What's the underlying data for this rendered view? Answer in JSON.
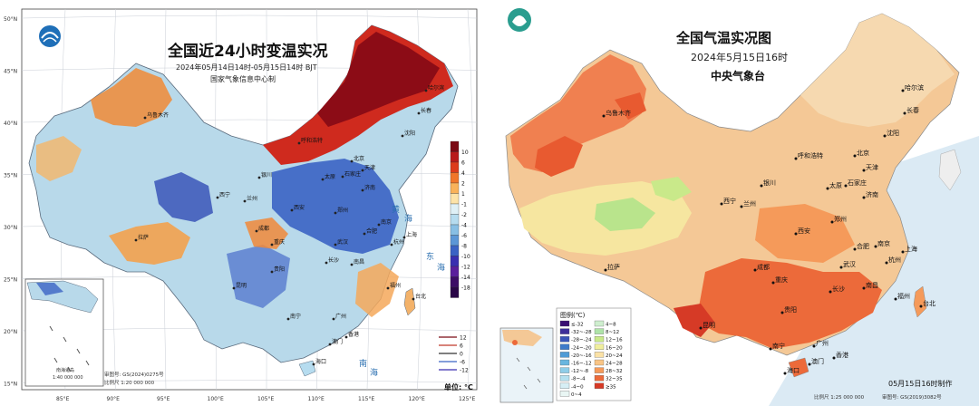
{
  "left_map": {
    "title": "全国近24小时变温实况",
    "subtitle": "2024年05月14日14时-05月15日14时 BJT",
    "agency": "国家气象信息中心制",
    "unit": "单位: °C",
    "lat_labels": [
      "50°N",
      "45°N",
      "40°N",
      "35°N",
      "30°N",
      "25°N",
      "20°N",
      "15°N"
    ],
    "lon_labels": [
      "85°E",
      "90°E",
      "95°E",
      "100°E",
      "105°E",
      "110°E",
      "115°E",
      "120°E",
      "125°E"
    ],
    "legend": {
      "values": [
        "10",
        "6",
        "4",
        "2",
        "1",
        "-1",
        "-2",
        "-4",
        "-6",
        "-8",
        "-10",
        "-12",
        "-14",
        "-18"
      ],
      "colors": [
        "#7a0a14",
        "#b81a1a",
        "#dc3b1c",
        "#f0762a",
        "#f9b25a",
        "#fde3a8",
        "#dff0f6",
        "#b6dcef",
        "#88bfe4",
        "#5c97d6",
        "#3b63c4",
        "#3a2fb0",
        "#5b1f9c",
        "#3d0d66",
        "#2a0647"
      ]
    },
    "contour_legend": [
      "12",
      "6",
      "0",
      "-6",
      "-12"
    ],
    "inset": {
      "label": "南海诸岛",
      "scale": "1:40 000 000"
    },
    "footer": [
      "审图号: GS(2024)0275号",
      "比例尺 1:20 000 000"
    ],
    "cities": [
      "北京",
      "天津",
      "石家庄",
      "济南",
      "郑州",
      "西安",
      "成都",
      "重庆",
      "贵阳",
      "昆明",
      "南宁",
      "广州",
      "香港",
      "澳门",
      "海口",
      "武汉",
      "长沙",
      "南昌",
      "福州",
      "杭州",
      "上海",
      "南京",
      "合肥",
      "台北",
      "沈阳",
      "长春",
      "哈尔滨",
      "呼和浩特",
      "太原",
      "银川",
      "兰州",
      "西宁",
      "乌鲁木齐",
      "拉萨"
    ],
    "sea_labels": [
      "黄",
      "海",
      "东",
      "海",
      "南",
      "海"
    ]
  },
  "right_map": {
    "title": "全国气温实况图",
    "subtitle": "2024年5月15日16时",
    "agency": "中央气象台",
    "legend_title": "图例(℃)",
    "legend_left": [
      "≤-32",
      "-32~-28",
      "-28~-24",
      "-24~-20",
      "-20~-16",
      "-16~-12",
      "-12~-8",
      "-8~-4",
      "-4~0",
      "0~4"
    ],
    "legend_right": [
      "4~8",
      "8~12",
      "12~16",
      "16~20",
      "20~24",
      "24~28",
      "28~32",
      "32~35",
      "≥35"
    ],
    "legend_left_colors": [
      "#3a0f72",
      "#3e2f9a",
      "#3a55b8",
      "#3e7ac9",
      "#4f9bd6",
      "#6ab6df",
      "#8fcde8",
      "#b4e0ef",
      "#d6eef5",
      "#e9f6f4"
    ],
    "legend_right_colors": [
      "#cfeecf",
      "#aee3a8",
      "#c9e98a",
      "#f0ee9c",
      "#fbe2a6",
      "#f9c586",
      "#f59a5a",
      "#ec6a3a",
      "#d63a26"
    ],
    "made_time": "05月15日16时制作",
    "footer": [
      "比例尺 1:25 000 000",
      "审图号: GS(2019)3082号"
    ],
    "cities": [
      "哈尔滨",
      "长春",
      "沈阳",
      "北京",
      "天津",
      "呼和浩特",
      "石家庄",
      "太原",
      "济南",
      "银川",
      "兰州",
      "西宁",
      "郑州",
      "西安",
      "南京",
      "合肥",
      "上海",
      "杭州",
      "武汉",
      "成都",
      "重庆",
      "长沙",
      "南昌",
      "贵阳",
      "福州",
      "台北",
      "昆明",
      "南宁",
      "广州",
      "香港",
      "澳门",
      "海口",
      "乌鲁木齐",
      "拉萨"
    ]
  }
}
